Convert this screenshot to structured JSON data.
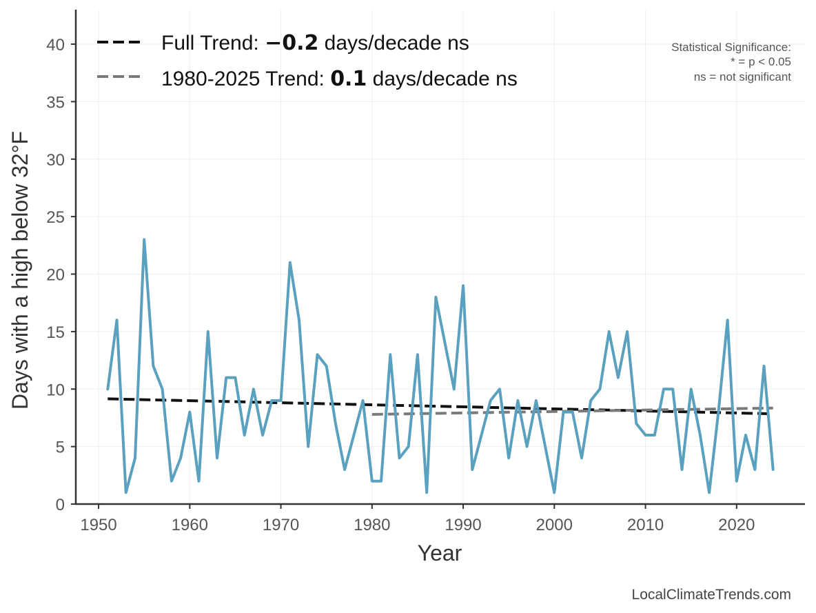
{
  "colors": {
    "series": "#5aa0bf",
    "full_trend": "#111111",
    "recent_trend": "#7a7a7a",
    "grid": "#eeeeee",
    "axis": "#333333"
  },
  "legend": {
    "full": {
      "prefix": "Full Trend: ",
      "value": "−0.2",
      "suffix": " days/decade ns"
    },
    "recent": {
      "prefix": "1980-2025 Trend: ",
      "value": "0.1",
      "suffix": " days/decade ns"
    }
  },
  "significance": {
    "title": "Statistical Significance:",
    "line1": "* = p < 0.05",
    "line2": "ns = not significant"
  },
  "credit": "LocalClimateTrends.com",
  "chart_data": {
    "type": "line",
    "title": "",
    "xlabel": "Year",
    "ylabel": "Days with a high below 32°F",
    "xlim": [
      1947.5,
      2027.5
    ],
    "ylim": [
      0,
      43
    ],
    "xticks": [
      1950,
      1960,
      1970,
      1980,
      1990,
      2000,
      2010,
      2020
    ],
    "yticks": [
      0,
      5,
      10,
      15,
      20,
      25,
      30,
      35,
      40
    ],
    "grid": true,
    "legend_position": "top-left",
    "series": [
      {
        "name": "Days with a high below 32°F",
        "x": [
          1951,
          1952,
          1953,
          1954,
          1955,
          1956,
          1957,
          1958,
          1959,
          1960,
          1961,
          1962,
          1963,
          1964,
          1965,
          1966,
          1967,
          1968,
          1969,
          1970,
          1971,
          1972,
          1973,
          1974,
          1975,
          1976,
          1977,
          1978,
          1979,
          1980,
          1981,
          1982,
          1983,
          1984,
          1985,
          1986,
          1987,
          1988,
          1989,
          1990,
          1991,
          1992,
          1993,
          1994,
          1995,
          1996,
          1997,
          1998,
          1999,
          2000,
          2001,
          2002,
          2003,
          2004,
          2005,
          2006,
          2007,
          2008,
          2009,
          2010,
          2011,
          2012,
          2013,
          2014,
          2015,
          2016,
          2017,
          2018,
          2019,
          2020,
          2021,
          2022,
          2023,
          2024
        ],
        "values": [
          10,
          16,
          1,
          4,
          23,
          12,
          10,
          2,
          4,
          8,
          2,
          15,
          4,
          11,
          11,
          6,
          10,
          6,
          9,
          9,
          21,
          16,
          5,
          13,
          12,
          7,
          3,
          6,
          9,
          2,
          2,
          13,
          4,
          5,
          13,
          1,
          18,
          14,
          10,
          19,
          3,
          6,
          9,
          10,
          4,
          9,
          5,
          9,
          5,
          1,
          8,
          8,
          4,
          9,
          10,
          15,
          11,
          15,
          7,
          6,
          6,
          10,
          10,
          3,
          10,
          6,
          1,
          8,
          16,
          2,
          6,
          3,
          12,
          3
        ]
      },
      {
        "name": "Full Trend",
        "x": [
          1951,
          2024
        ],
        "values": [
          9.15,
          7.85
        ]
      },
      {
        "name": "1980-2025 Trend",
        "x": [
          1980,
          2024
        ],
        "values": [
          7.8,
          8.35
        ]
      }
    ]
  }
}
